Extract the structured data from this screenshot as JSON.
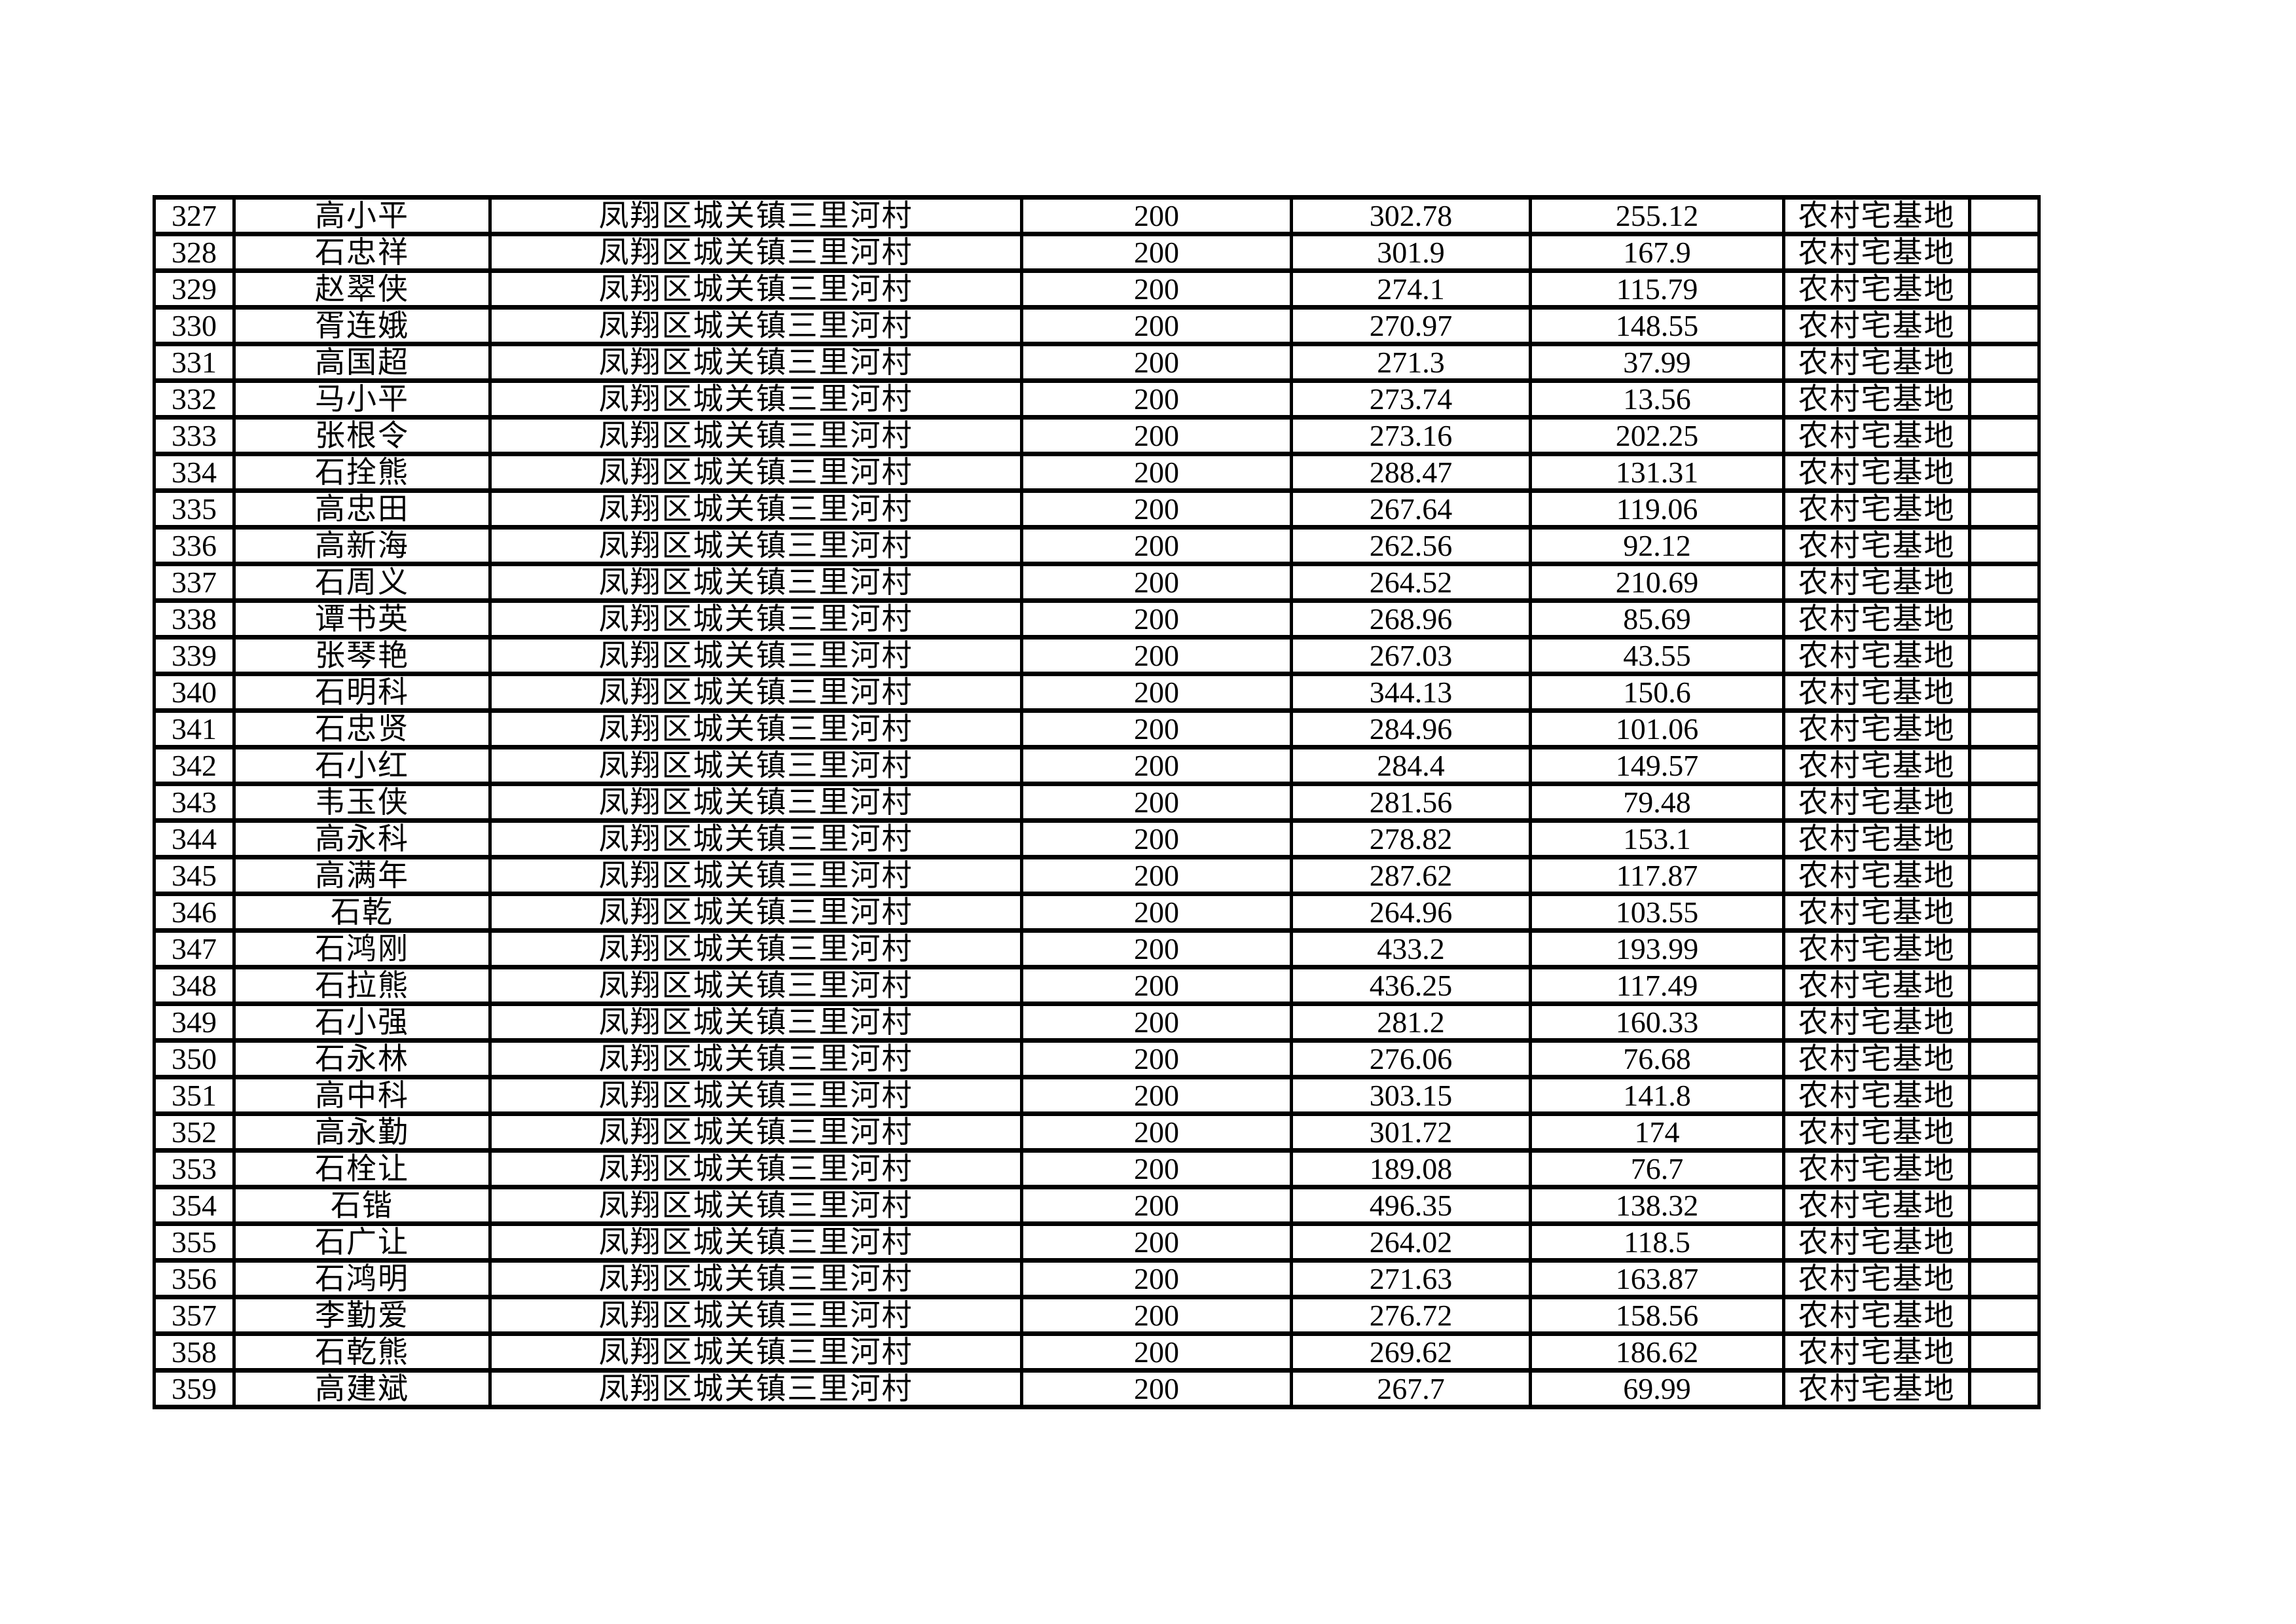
{
  "table": {
    "land_type_note": "农村宅基地",
    "village": "凤翔区城关镇三里河村",
    "rows": [
      [
        "327",
        "高小平",
        "凤翔区城关镇三里河村",
        "200",
        "302.78",
        "255.12",
        "农村宅基地",
        ""
      ],
      [
        "328",
        "石忠祥",
        "凤翔区城关镇三里河村",
        "200",
        "301.9",
        "167.9",
        "农村宅基地",
        ""
      ],
      [
        "329",
        "赵翠侠",
        "凤翔区城关镇三里河村",
        "200",
        "274.1",
        "115.79",
        "农村宅基地",
        ""
      ],
      [
        "330",
        "胥连娥",
        "凤翔区城关镇三里河村",
        "200",
        "270.97",
        "148.55",
        "农村宅基地",
        ""
      ],
      [
        "331",
        "高国超",
        "凤翔区城关镇三里河村",
        "200",
        "271.3",
        "37.99",
        "农村宅基地",
        ""
      ],
      [
        "332",
        "马小平",
        "凤翔区城关镇三里河村",
        "200",
        "273.74",
        "13.56",
        "农村宅基地",
        ""
      ],
      [
        "333",
        "张根令",
        "凤翔区城关镇三里河村",
        "200",
        "273.16",
        "202.25",
        "农村宅基地",
        ""
      ],
      [
        "334",
        "石拴熊",
        "凤翔区城关镇三里河村",
        "200",
        "288.47",
        "131.31",
        "农村宅基地",
        ""
      ],
      [
        "335",
        "高忠田",
        "凤翔区城关镇三里河村",
        "200",
        "267.64",
        "119.06",
        "农村宅基地",
        ""
      ],
      [
        "336",
        "高新海",
        "凤翔区城关镇三里河村",
        "200",
        "262.56",
        "92.12",
        "农村宅基地",
        ""
      ],
      [
        "337",
        "石周义",
        "凤翔区城关镇三里河村",
        "200",
        "264.52",
        "210.69",
        "农村宅基地",
        ""
      ],
      [
        "338",
        "谭书英",
        "凤翔区城关镇三里河村",
        "200",
        "268.96",
        "85.69",
        "农村宅基地",
        ""
      ],
      [
        "339",
        "张琴艳",
        "凤翔区城关镇三里河村",
        "200",
        "267.03",
        "43.55",
        "农村宅基地",
        ""
      ],
      [
        "340",
        "石明科",
        "凤翔区城关镇三里河村",
        "200",
        "344.13",
        "150.6",
        "农村宅基地",
        ""
      ],
      [
        "341",
        "石忠贤",
        "凤翔区城关镇三里河村",
        "200",
        "284.96",
        "101.06",
        "农村宅基地",
        ""
      ],
      [
        "342",
        "石小红",
        "凤翔区城关镇三里河村",
        "200",
        "284.4",
        "149.57",
        "农村宅基地",
        ""
      ],
      [
        "343",
        "韦玉侠",
        "凤翔区城关镇三里河村",
        "200",
        "281.56",
        "79.48",
        "农村宅基地",
        ""
      ],
      [
        "344",
        "高永科",
        "凤翔区城关镇三里河村",
        "200",
        "278.82",
        "153.1",
        "农村宅基地",
        ""
      ],
      [
        "345",
        "高满年",
        "凤翔区城关镇三里河村",
        "200",
        "287.62",
        "117.87",
        "农村宅基地",
        ""
      ],
      [
        "346",
        "石乾",
        "凤翔区城关镇三里河村",
        "200",
        "264.96",
        "103.55",
        "农村宅基地",
        ""
      ],
      [
        "347",
        "石鸿刚",
        "凤翔区城关镇三里河村",
        "200",
        "433.2",
        "193.99",
        "农村宅基地",
        ""
      ],
      [
        "348",
        "石拉熊",
        "凤翔区城关镇三里河村",
        "200",
        "436.25",
        "117.49",
        "农村宅基地",
        ""
      ],
      [
        "349",
        "石小强",
        "凤翔区城关镇三里河村",
        "200",
        "281.2",
        "160.33",
        "农村宅基地",
        ""
      ],
      [
        "350",
        "石永林",
        "凤翔区城关镇三里河村",
        "200",
        "276.06",
        "76.68",
        "农村宅基地",
        ""
      ],
      [
        "351",
        "高中科",
        "凤翔区城关镇三里河村",
        "200",
        "303.15",
        "141.8",
        "农村宅基地",
        ""
      ],
      [
        "352",
        "高永勤",
        "凤翔区城关镇三里河村",
        "200",
        "301.72",
        "174",
        "农村宅基地",
        ""
      ],
      [
        "353",
        "石栓让",
        "凤翔区城关镇三里河村",
        "200",
        "189.08",
        "76.7",
        "农村宅基地",
        ""
      ],
      [
        "354",
        "石锴",
        "凤翔区城关镇三里河村",
        "200",
        "496.35",
        "138.32",
        "农村宅基地",
        ""
      ],
      [
        "355",
        "石广让",
        "凤翔区城关镇三里河村",
        "200",
        "264.02",
        "118.5",
        "农村宅基地",
        ""
      ],
      [
        "356",
        "石鸿明",
        "凤翔区城关镇三里河村",
        "200",
        "271.63",
        "163.87",
        "农村宅基地",
        ""
      ],
      [
        "357",
        "李勤爱",
        "凤翔区城关镇三里河村",
        "200",
        "276.72",
        "158.56",
        "农村宅基地",
        ""
      ],
      [
        "358",
        "石乾熊",
        "凤翔区城关镇三里河村",
        "200",
        "269.62",
        "186.62",
        "农村宅基地",
        ""
      ],
      [
        "359",
        "高建斌",
        "凤翔区城关镇三里河村",
        "200",
        "267.7",
        "69.99",
        "农村宅基地",
        ""
      ]
    ]
  }
}
